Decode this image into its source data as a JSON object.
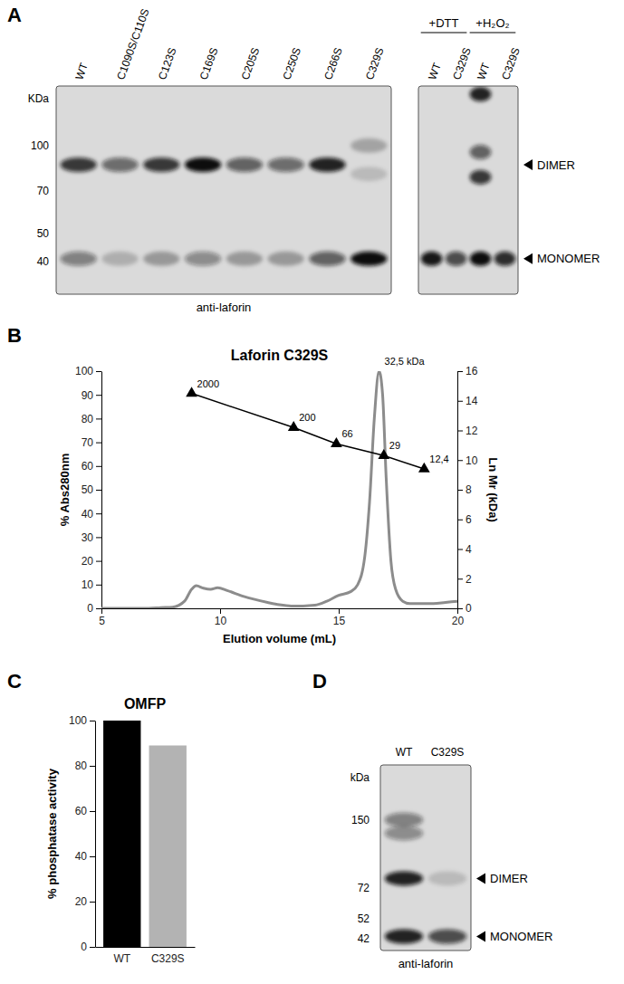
{
  "panels": [
    "A",
    "B",
    "C",
    "D"
  ],
  "blots": [
    {
      "ylim": [
        160,
        31
      ],
      "marker_title": "KDa",
      "markers": [
        100,
        70,
        50,
        40
      ],
      "caption": "anti-laforin",
      "lanes": [
        {
          "label": "WT",
          "bands": [
            {
              "kda": 86,
              "intensity": 0.8
            },
            {
              "kda": 41,
              "intensity": 0.45
            }
          ]
        },
        {
          "label": "C1090S/C110S",
          "bands": [
            {
              "kda": 86,
              "intensity": 0.55
            },
            {
              "kda": 41,
              "intensity": 0.2
            }
          ]
        },
        {
          "label": "C123S",
          "bands": [
            {
              "kda": 86,
              "intensity": 0.8
            },
            {
              "kda": 41,
              "intensity": 0.3
            }
          ]
        },
        {
          "label": "C169S",
          "bands": [
            {
              "kda": 86,
              "intensity": 1.0
            },
            {
              "kda": 41,
              "intensity": 0.4
            }
          ]
        },
        {
          "label": "C205S",
          "bands": [
            {
              "kda": 86,
              "intensity": 0.6
            },
            {
              "kda": 41,
              "intensity": 0.3
            }
          ]
        },
        {
          "label": "C250S",
          "bands": [
            {
              "kda": 86,
              "intensity": 0.55
            },
            {
              "kda": 41,
              "intensity": 0.3
            }
          ]
        },
        {
          "label": "C266S",
          "bands": [
            {
              "kda": 86,
              "intensity": 0.9
            },
            {
              "kda": 41,
              "intensity": 0.6
            }
          ]
        },
        {
          "label": "C329S",
          "bands": [
            {
              "kda": 100,
              "intensity": 0.25
            },
            {
              "kda": 80,
              "intensity": 0.15
            },
            {
              "kda": 41,
              "intensity": 1.0
            }
          ]
        }
      ]
    },
    {
      "ylim": [
        160,
        31
      ],
      "groups": [
        {
          "label": "+DTT",
          "lanes": [
            {
              "label": "WT",
              "bands": [
                {
                  "kda": 41,
                  "intensity": 0.95
                }
              ]
            },
            {
              "label": "C329S",
              "bands": [
                {
                  "kda": 41,
                  "intensity": 0.7
                }
              ]
            }
          ]
        },
        {
          "label": "+H₂O₂",
          "lanes": [
            {
              "label": "WT",
              "bands": [
                {
                  "kda": 150,
                  "intensity": 0.9
                },
                {
                  "kda": 95,
                  "intensity": 0.6
                },
                {
                  "kda": 78,
                  "intensity": 0.8
                },
                {
                  "kda": 41,
                  "intensity": 1.0
                }
              ]
            },
            {
              "label": "C329S",
              "bands": [
                {
                  "kda": 41,
                  "intensity": 0.85
                }
              ]
            }
          ]
        }
      ],
      "arrows": [
        {
          "label": "DIMER",
          "kda": 86
        },
        {
          "label": "MONOMER",
          "kda": 41
        }
      ]
    },
    {
      "ylim": [
        270,
        37
      ],
      "marker_title": "kDa",
      "markers": [
        150,
        72,
        52,
        42
      ],
      "caption": "anti-laforin",
      "lanes": [
        {
          "label": "WT",
          "bands": [
            {
              "kda": 150,
              "intensity": 0.45
            },
            {
              "kda": 130,
              "intensity": 0.4
            },
            {
              "kda": 80,
              "intensity": 0.9
            },
            {
              "kda": 43,
              "intensity": 0.9
            }
          ]
        },
        {
          "label": "C329S",
          "bands": [
            {
              "kda": 80,
              "intensity": 0.15
            },
            {
              "kda": 43,
              "intensity": 0.7
            }
          ]
        }
      ],
      "arrows": [
        {
          "label": "DIMER",
          "kda": 80
        },
        {
          "label": "MONOMER",
          "kda": 43
        }
      ]
    }
  ],
  "chart_data": [
    {
      "type": "line",
      "title": "Laforin C329S",
      "x_label": "Elution volume (mL)",
      "y_label": "% Abs280nm",
      "y2_label": "Ln Mr (kDa)",
      "xlim": [
        5,
        20
      ],
      "xticks": [
        5,
        10,
        15,
        20
      ],
      "ylim": [
        0,
        100
      ],
      "yticks": [
        0,
        10,
        20,
        30,
        40,
        50,
        60,
        70,
        80,
        90,
        100
      ],
      "y2lim": [
        0,
        16
      ],
      "y2ticks": [
        0,
        2,
        4,
        6,
        8,
        10,
        12,
        14,
        16
      ],
      "series": [
        {
          "type": "line",
          "color": "#8c8c8c",
          "x": [
            5,
            6,
            7,
            7.5,
            8,
            8.5,
            8.8,
            9.0,
            9.3,
            9.6,
            9.9,
            10.3,
            11,
            12,
            12.5,
            13,
            13.5,
            14,
            14.5,
            15,
            15.5,
            15.8,
            16.1,
            16.3,
            16.5,
            16.7,
            16.85,
            17.0,
            17.2,
            17.4,
            17.7,
            18,
            19,
            19.5,
            20
          ],
          "values": [
            0,
            0,
            0,
            0.3,
            0.5,
            3,
            8,
            9.5,
            8.5,
            8,
            8.7,
            7.5,
            5,
            2.5,
            1.5,
            1,
            1,
            1.3,
            3,
            5.5,
            7,
            10,
            22,
            45,
            80,
            100,
            90,
            55,
            20,
            8,
            3,
            2,
            2,
            2.5,
            3
          ]
        },
        {
          "type": "line",
          "color": "#000000",
          "marker": "triangle",
          "axis": "y2",
          "x": [
            8.8,
            13.1,
            14.9,
            16.9,
            18.6
          ],
          "values": [
            14.5,
            12.2,
            11.1,
            10.3,
            9.4
          ]
        }
      ],
      "annotations": [
        {
          "text": "2000",
          "x": 8.8,
          "y": 14.5,
          "axis": "y2"
        },
        {
          "text": "200",
          "x": 13.1,
          "y": 12.2,
          "axis": "y2"
        },
        {
          "text": "66",
          "x": 14.9,
          "y": 11.1,
          "axis": "y2"
        },
        {
          "text": "29",
          "x": 16.9,
          "y": 10.3,
          "axis": "y2"
        },
        {
          "text": "12,4",
          "x": 18.6,
          "y": 9.4,
          "axis": "y2"
        },
        {
          "text": "32,5 kDa",
          "x": 16.7,
          "y": 100
        }
      ]
    },
    {
      "type": "bar",
      "title": "OMFP",
      "y_label": "% phosphatase activity",
      "categories": [
        "WT",
        "C329S"
      ],
      "values": [
        100,
        89
      ],
      "colors": [
        "#000000",
        "#b3b3b3"
      ],
      "ylim": [
        0,
        100
      ],
      "yticks": [
        0,
        20,
        40,
        60,
        80,
        100
      ]
    }
  ]
}
